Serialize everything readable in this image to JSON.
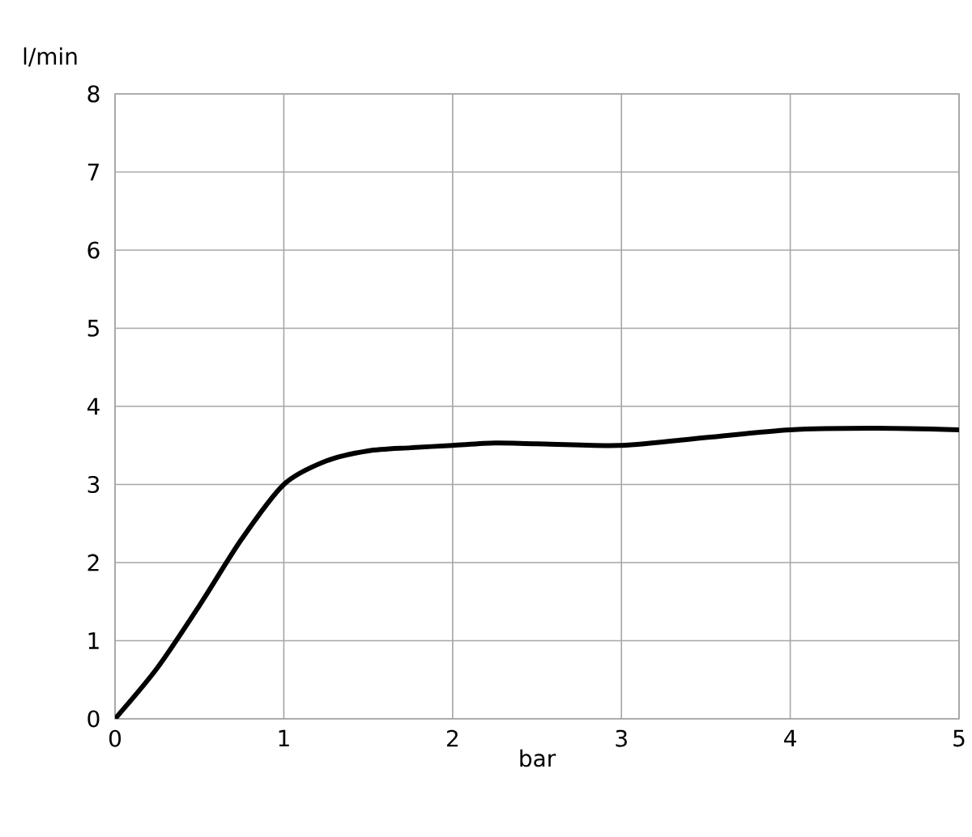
{
  "chart_data": {
    "type": "line",
    "xlabel": "bar",
    "ylabel": "l/min",
    "x": [
      0,
      0.25,
      0.5,
      0.75,
      1,
      1.25,
      1.5,
      1.75,
      2,
      2.25,
      2.5,
      3,
      3.5,
      4,
      4.5,
      5
    ],
    "series": [
      {
        "color": "#000000",
        "values": [
          0,
          0.65,
          1.45,
          2.3,
          3.0,
          3.3,
          3.43,
          3.47,
          3.5,
          3.53,
          3.52,
          3.5,
          3.6,
          3.7,
          3.72,
          3.7
        ]
      }
    ],
    "xlim": [
      0,
      5
    ],
    "ylim": [
      0,
      8
    ],
    "xticks": [
      0,
      1,
      2,
      3,
      4,
      5
    ],
    "yticks": [
      0,
      1,
      2,
      3,
      4,
      5,
      6,
      7,
      8
    ],
    "grid": true,
    "legend": false,
    "marker": "none",
    "line_style": "solid"
  }
}
